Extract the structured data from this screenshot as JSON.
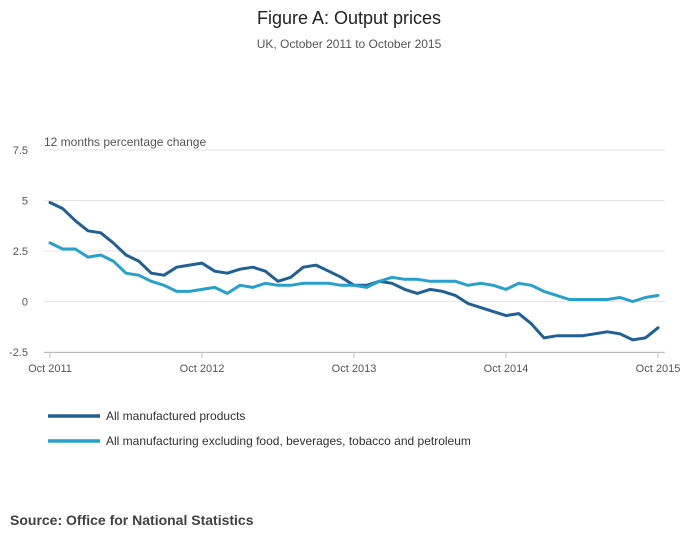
{
  "source_text": "Source: Office for National Statistics",
  "chart_data": {
    "type": "line",
    "title": "Figure A: Output prices",
    "subtitle": "UK, October 2011 to October 2015",
    "ylabel": "12 months percentage change",
    "xlabel": "",
    "ylim": [
      -2.5,
      7.5
    ],
    "yticks": [
      -2.5,
      0,
      2.5,
      5,
      7.5
    ],
    "ytick_labels": [
      "-2.5",
      "0",
      "2.5",
      "5",
      "7.5"
    ],
    "xtick_index": [
      0,
      12,
      24,
      36,
      48
    ],
    "xtick_labels": [
      "Oct 2011",
      "Oct 2012",
      "Oct 2013",
      "Oct 2014",
      "Oct 2015"
    ],
    "grid": true,
    "legend_position": "bottom-left",
    "series": [
      {
        "name": "All manufactured products",
        "color": "#206095",
        "values": [
          4.9,
          4.6,
          4.0,
          3.5,
          3.4,
          2.9,
          2.3,
          2.0,
          1.4,
          1.3,
          1.7,
          1.8,
          1.9,
          1.5,
          1.4,
          1.6,
          1.7,
          1.5,
          1.0,
          1.2,
          1.7,
          1.8,
          1.5,
          1.2,
          0.8,
          0.8,
          1.0,
          0.9,
          0.6,
          0.4,
          0.6,
          0.5,
          0.3,
          -0.1,
          -0.3,
          -0.5,
          -0.7,
          -0.6,
          -1.1,
          -1.8,
          -1.7,
          -1.7,
          -1.7,
          -1.6,
          -1.5,
          -1.6,
          -1.9,
          -1.8,
          -1.3
        ]
      },
      {
        "name": "All manufacturing excluding food, beverages, tobacco and petroleum",
        "color": "#27a0cc",
        "values": [
          2.9,
          2.6,
          2.6,
          2.2,
          2.3,
          2.0,
          1.4,
          1.3,
          1.0,
          0.8,
          0.5,
          0.5,
          0.6,
          0.7,
          0.4,
          0.8,
          0.7,
          0.9,
          0.8,
          0.8,
          0.9,
          0.9,
          0.9,
          0.8,
          0.8,
          0.7,
          1.0,
          1.2,
          1.1,
          1.1,
          1.0,
          1.0,
          1.0,
          0.8,
          0.9,
          0.8,
          0.6,
          0.9,
          0.8,
          0.5,
          0.3,
          0.1,
          0.1,
          0.1,
          0.1,
          0.2,
          0.0,
          0.2,
          0.3
        ]
      }
    ]
  }
}
